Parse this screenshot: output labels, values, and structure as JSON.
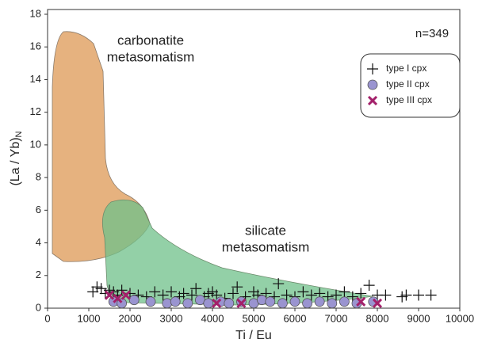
{
  "chart_data": {
    "type": "scatter",
    "xlabel": "Ti / Eu",
    "ylabel": "(La / Yb)",
    "ylabel_sub": "N",
    "annotations": [
      "n=349",
      "carbonatite",
      "metasomatism",
      "silicate",
      "metasomatism"
    ],
    "xlim": [
      0,
      10000
    ],
    "xticks": [
      0,
      1000,
      2000,
      3000,
      4000,
      5000,
      6000,
      7000,
      8000,
      9000,
      10000
    ],
    "ylim": [
      0,
      18
    ],
    "yticks": [
      0,
      2,
      4,
      6,
      8,
      10,
      12,
      14,
      16,
      18
    ],
    "series": [
      {
        "name": "type I cpx",
        "marker": "plus",
        "color": "#111111",
        "x": [
          1100,
          1200,
          1300,
          1400,
          1500,
          1600,
          1700,
          1800,
          2000,
          2200,
          2400,
          2600,
          2800,
          3000,
          3200,
          3300,
          3500,
          3600,
          3800,
          3900,
          4000,
          4100,
          4300,
          4500,
          4600,
          4800,
          5000,
          5100,
          5300,
          5500,
          5600,
          5800,
          6000,
          6200,
          6400,
          6600,
          6800,
          7000,
          7200,
          7400,
          7600,
          7800,
          8000,
          8200,
          8600,
          8700,
          9000,
          9300
        ],
        "values": [
          1.0,
          1.3,
          1.2,
          0.9,
          1.1,
          1.0,
          0.8,
          1.1,
          0.9,
          0.8,
          0.7,
          1.0,
          0.8,
          1.0,
          0.7,
          0.9,
          0.8,
          1.2,
          0.7,
          0.9,
          1.0,
          0.8,
          0.6,
          0.9,
          1.3,
          0.7,
          1.0,
          0.8,
          0.9,
          0.7,
          1.5,
          0.8,
          0.7,
          1.0,
          0.8,
          0.9,
          0.7,
          0.8,
          1.0,
          0.7,
          0.9,
          1.4,
          0.8,
          0.8,
          0.7,
          0.8,
          0.8,
          0.8
        ]
      },
      {
        "name": "type II cpx",
        "marker": "circle",
        "color": "#9a94d0",
        "x": [
          1600,
          1800,
          2100,
          2500,
          2900,
          3100,
          3400,
          3700,
          3900,
          4200,
          4400,
          4700,
          5000,
          5200,
          5400,
          5700,
          6000,
          6300,
          6600,
          6900,
          7200,
          7500,
          7900
        ],
        "values": [
          0.4,
          0.3,
          0.5,
          0.4,
          0.3,
          0.4,
          0.3,
          0.5,
          0.3,
          0.4,
          0.3,
          0.4,
          0.3,
          0.5,
          0.4,
          0.3,
          0.4,
          0.3,
          0.4,
          0.3,
          0.4,
          0.3,
          0.4
        ]
      },
      {
        "name": "type III cpx",
        "marker": "cross",
        "color": "#a3206a",
        "x": [
          1500,
          1700,
          1900,
          4100,
          4700,
          7600,
          8000
        ],
        "values": [
          0.8,
          0.6,
          0.8,
          0.3,
          0.3,
          0.4,
          0.3
        ]
      }
    ]
  }
}
